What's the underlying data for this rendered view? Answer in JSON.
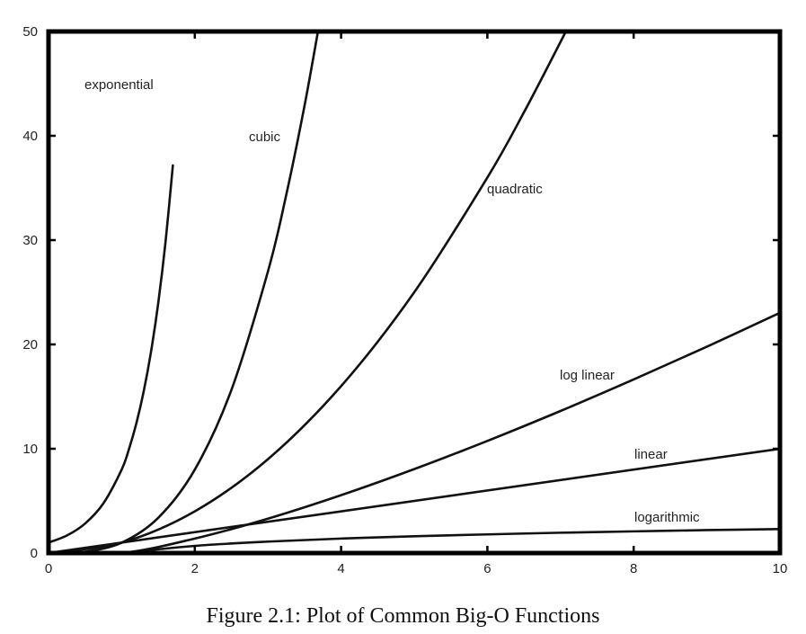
{
  "figure": {
    "caption": "Figure 2.1: Plot of Common Big-O Functions"
  },
  "chart_data": {
    "type": "line",
    "title": "",
    "xlabel": "",
    "ylabel": "",
    "xlim": [
      0,
      10
    ],
    "ylim": [
      0,
      50
    ],
    "xticks": [
      0,
      2,
      4,
      6,
      8,
      10
    ],
    "yticks": [
      0,
      10,
      20,
      30,
      40,
      50
    ],
    "grid": false,
    "legend": "none",
    "line_color": "#111111",
    "series": [
      {
        "name": "exponential",
        "x": [
          0,
          0.25,
          0.5,
          0.75,
          1.0,
          1.1,
          1.2,
          1.3,
          1.4,
          1.5,
          1.6,
          1.7
        ],
        "y": [
          1.0,
          1.68,
          2.83,
          4.76,
          8.0,
          9.97,
          12.41,
          15.45,
          19.24,
          23.96,
          29.84,
          37.16
        ]
      },
      {
        "name": "cubic",
        "x": [
          0,
          0.5,
          1.0,
          1.5,
          2.0,
          2.5,
          3.0,
          3.25,
          3.5,
          3.7
        ],
        "y": [
          0,
          0.13,
          1.0,
          3.38,
          8.0,
          15.63,
          27.0,
          34.33,
          42.88,
          50.65
        ]
      },
      {
        "name": "quadratic",
        "x": [
          0,
          1,
          2,
          3,
          4,
          5,
          6,
          6.5,
          7.0,
          7.1
        ],
        "y": [
          0,
          1,
          4,
          9,
          16,
          25,
          36,
          42.25,
          49.0,
          50.41
        ]
      },
      {
        "name": "log linear",
        "x": [
          0,
          1,
          2,
          3,
          4,
          5,
          6,
          7,
          8,
          9,
          10
        ],
        "y": [
          0,
          0.0,
          1.39,
          3.3,
          5.55,
          8.05,
          10.75,
          13.62,
          16.64,
          19.78,
          23.03
        ]
      },
      {
        "name": "linear",
        "x": [
          0,
          10
        ],
        "y": [
          0,
          10
        ]
      },
      {
        "name": "logarithmic",
        "x": [
          1,
          2,
          3,
          4,
          5,
          6,
          7,
          8,
          9,
          10
        ],
        "y": [
          0.0,
          0.69,
          1.1,
          1.39,
          1.61,
          1.79,
          1.95,
          2.08,
          2.2,
          2.3
        ]
      }
    ]
  }
}
